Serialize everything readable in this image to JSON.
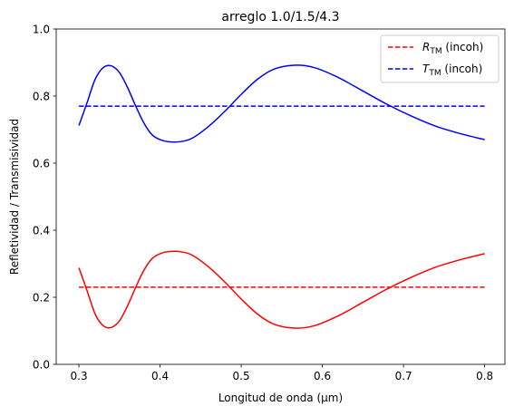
{
  "chart_data": {
    "type": "line",
    "title": "arreglo 1.0/1.5/4.3",
    "xlabel": "Longitud de onda (μm)",
    "ylabel": "Refletividad / Transmisividad",
    "xlim": [
      0.272,
      0.825
    ],
    "ylim": [
      0.0,
      1.0
    ],
    "xticks": [
      "0.3",
      "0.4",
      "0.5",
      "0.6",
      "0.7",
      "0.8"
    ],
    "yticks": [
      "0.0",
      "0.2",
      "0.4",
      "0.6",
      "0.8",
      "1.0"
    ],
    "grid": false,
    "legend_position": "top-right",
    "series": [
      {
        "name": "R_TM (incoh)",
        "legend_main": "R",
        "legend_sub": "TM",
        "legend_suffix": " (incoh)",
        "color": "#ff0000",
        "style": "dashed",
        "x": [
          0.3,
          0.8
        ],
        "y": [
          0.23,
          0.23
        ]
      },
      {
        "name": "T_TM (incoh)",
        "legend_main": "T",
        "legend_sub": "TM",
        "legend_suffix": " (incoh)",
        "color": "#0000ff",
        "style": "dashed",
        "x": [
          0.3,
          0.8
        ],
        "y": [
          0.77,
          0.77
        ]
      },
      {
        "color": "#ff0000",
        "style": "solid",
        "x": [
          0.3,
          0.31,
          0.32,
          0.33,
          0.34,
          0.35,
          0.36,
          0.37,
          0.38,
          0.39,
          0.4,
          0.41,
          0.425,
          0.44,
          0.46,
          0.48,
          0.5,
          0.52,
          0.54,
          0.565,
          0.59,
          0.62,
          0.65,
          0.68,
          0.71,
          0.74,
          0.77,
          0.8
        ],
        "y": [
          0.288,
          0.22,
          0.15,
          0.115,
          0.11,
          0.13,
          0.175,
          0.23,
          0.28,
          0.315,
          0.33,
          0.336,
          0.336,
          0.325,
          0.29,
          0.245,
          0.195,
          0.15,
          0.12,
          0.108,
          0.115,
          0.145,
          0.185,
          0.225,
          0.26,
          0.29,
          0.312,
          0.33
        ]
      },
      {
        "color": "#0000ff",
        "style": "solid",
        "x": [
          0.3,
          0.31,
          0.32,
          0.33,
          0.34,
          0.35,
          0.36,
          0.37,
          0.38,
          0.39,
          0.4,
          0.41,
          0.425,
          0.44,
          0.46,
          0.48,
          0.5,
          0.52,
          0.54,
          0.565,
          0.59,
          0.62,
          0.65,
          0.68,
          0.71,
          0.74,
          0.77,
          0.8
        ],
        "y": [
          0.712,
          0.78,
          0.85,
          0.885,
          0.89,
          0.87,
          0.825,
          0.77,
          0.72,
          0.685,
          0.67,
          0.664,
          0.664,
          0.675,
          0.71,
          0.755,
          0.805,
          0.85,
          0.88,
          0.892,
          0.885,
          0.855,
          0.815,
          0.775,
          0.74,
          0.71,
          0.688,
          0.67
        ]
      }
    ]
  }
}
